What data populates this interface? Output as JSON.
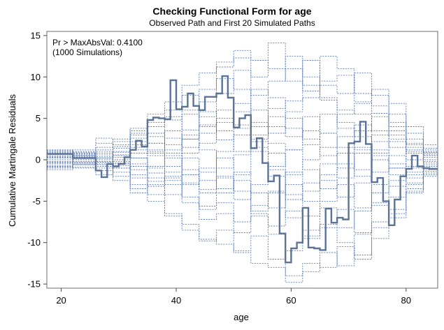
{
  "chart_data": {
    "type": "line",
    "title": "Checking Functional Form for age",
    "subtitle": "Observed Path and First 20 Simulated Paths",
    "xlabel": "age",
    "ylabel": "Cumulative Martingale Residuals",
    "annotation_line1": "Pr > MaxAbsVal: 0.4100",
    "annotation_line2": "(1000 Simulations)",
    "xlim": [
      17.5,
      85.5
    ],
    "ylim": [
      -15.5,
      15.5
    ],
    "x_ticks": [
      20,
      40,
      60,
      80
    ],
    "y_ticks": [
      -15,
      -10,
      -5,
      0,
      5,
      10,
      15
    ],
    "grid": false,
    "step": true,
    "colors": {
      "observed": "#5b7396",
      "simulated": "#4c6fae"
    },
    "observed": {
      "x": [
        17.5,
        22,
        23,
        26,
        27,
        28,
        29,
        30,
        31,
        32,
        33,
        34,
        35,
        36,
        37,
        38,
        39,
        40,
        41,
        42,
        43,
        44,
        45,
        46,
        47,
        48,
        49,
        50,
        51,
        52,
        53,
        54,
        55,
        56,
        57,
        58,
        59,
        60,
        61,
        62,
        63,
        64,
        65,
        66,
        67,
        68,
        69,
        70,
        71,
        72,
        73,
        74,
        75,
        76,
        77,
        78,
        79,
        80,
        81,
        82,
        83,
        84,
        85,
        85.5
      ],
      "y": [
        0.7,
        0.2,
        0.2,
        -1.3,
        -2.1,
        -0.5,
        -0.8,
        -0.5,
        0.3,
        1.2,
        2.3,
        1.6,
        4.8,
        5.1,
        5.0,
        4.9,
        9.6,
        6.1,
        6.4,
        8.0,
        6.5,
        6.0,
        7.6,
        7.6,
        8.0,
        10.1,
        7.5,
        3.9,
        5.0,
        5.4,
        1.4,
        2.6,
        -0.4,
        -2.6,
        -1.9,
        -8.9,
        -12.4,
        -10.7,
        -10.0,
        -5.8,
        -10.6,
        -10.7,
        -10.9,
        -5.9,
        -7.6,
        -7.0,
        -7.2,
        2.0,
        2.2,
        4.6,
        1.9,
        -2.7,
        -2.2,
        -5.0,
        -7.9,
        -4.8,
        -2.0,
        -1.1,
        0.5,
        -0.8,
        -1.0,
        -1.1,
        -1.1,
        -1.1
      ]
    },
    "simulated": [
      {
        "x": [
          17.5,
          22,
          26,
          29,
          32,
          35,
          38,
          41,
          44,
          47,
          50,
          53,
          56,
          59,
          62,
          65,
          68,
          71,
          74,
          77,
          80,
          83,
          85.5
        ],
        "y": [
          1.2,
          0.5,
          -0.3,
          1.8,
          3.5,
          5.5,
          7.0,
          6.0,
          8.5,
          11.2,
          12.3,
          10.0,
          14.1,
          11.0,
          9.0,
          7.5,
          6.0,
          5.5,
          3.5,
          2.5,
          1.0,
          0.8,
          0.8
        ]
      },
      {
        "x": [
          17.5,
          22,
          26,
          29,
          32,
          35,
          38,
          41,
          44,
          47,
          50,
          53,
          56,
          59,
          62,
          65,
          68,
          71,
          74,
          77,
          80,
          83,
          85.5
        ],
        "y": [
          -1.2,
          -0.6,
          -1.0,
          -2.5,
          -4.0,
          -3.2,
          -6.8,
          -8.5,
          -9.6,
          -10.2,
          -11.2,
          -12.5,
          -13.0,
          -14.8,
          -13.5,
          -11.2,
          -12.8,
          -9.0,
          -8.2,
          -4.5,
          -3.0,
          -1.8,
          -1.8
        ]
      },
      {
        "x": [
          17.5,
          22,
          26,
          29,
          32,
          35,
          38,
          41,
          44,
          47,
          50,
          53,
          56,
          59,
          62,
          65,
          68,
          71,
          74,
          77,
          80,
          83,
          85.5
        ],
        "y": [
          0.9,
          1.2,
          2.0,
          0.5,
          3.0,
          4.5,
          6.0,
          9.0,
          10.5,
          11.8,
          13.2,
          12.0,
          11.0,
          9.5,
          8.3,
          12.5,
          11.0,
          7.0,
          5.6,
          4.0,
          1.5,
          0.5,
          0.5
        ]
      },
      {
        "x": [
          17.5,
          22,
          26,
          29,
          32,
          35,
          38,
          41,
          44,
          47,
          50,
          53,
          56,
          59,
          62,
          65,
          68,
          71,
          74,
          77,
          80,
          83,
          85.5
        ],
        "y": [
          -0.9,
          -0.5,
          -1.8,
          -0.5,
          -3.0,
          -5.0,
          -6.5,
          -7.8,
          -9.8,
          -8.5,
          -11.0,
          -9.2,
          -12.0,
          -14.0,
          -12.5,
          -13.0,
          -10.5,
          -12.0,
          -7.5,
          -6.0,
          -3.5,
          -1.2,
          -1.2
        ]
      },
      {
        "x": [
          17.5,
          22,
          26,
          29,
          32,
          35,
          38,
          41,
          44,
          47,
          50,
          53,
          56,
          59,
          62,
          65,
          68,
          71,
          74,
          77,
          80,
          83,
          85.5
        ],
        "y": [
          0.4,
          0.8,
          -0.3,
          0.9,
          2.2,
          1.0,
          3.5,
          2.5,
          4.2,
          6.0,
          3.8,
          8.5,
          6.2,
          7.1,
          12.0,
          9.5,
          10.2,
          8.0,
          6.5,
          3.5,
          2.0,
          1.0,
          1.0
        ]
      },
      {
        "x": [
          17.5,
          22,
          26,
          29,
          32,
          35,
          38,
          41,
          44,
          47,
          50,
          53,
          56,
          59,
          62,
          65,
          68,
          71,
          74,
          77,
          80,
          83,
          85.5
        ],
        "y": [
          -0.4,
          -0.2,
          0.6,
          -1.0,
          -1.8,
          -3.0,
          -2.2,
          -4.5,
          -6.0,
          -5.2,
          -7.5,
          -6.8,
          -9.0,
          -11.0,
          -9.2,
          -8.2,
          -10.0,
          -11.5,
          -9.5,
          -6.5,
          -3.8,
          -1.6,
          -1.6
        ]
      },
      {
        "x": [
          17.5,
          22,
          26,
          29,
          32,
          35,
          38,
          41,
          44,
          47,
          50,
          53,
          56,
          59,
          62,
          65,
          68,
          71,
          74,
          77,
          80,
          83,
          85.5
        ],
        "y": [
          0.0,
          0.5,
          1.2,
          2.5,
          1.5,
          4.0,
          5.2,
          3.6,
          7.0,
          9.8,
          8.5,
          6.0,
          3.2,
          5.8,
          7.5,
          9.0,
          8.0,
          10.5,
          7.8,
          4.5,
          2.5,
          0.9,
          0.9
        ]
      },
      {
        "x": [
          17.5,
          22,
          26,
          29,
          32,
          35,
          38,
          41,
          44,
          47,
          50,
          53,
          56,
          59,
          62,
          65,
          68,
          71,
          74,
          77,
          80,
          83,
          85.5
        ],
        "y": [
          0.7,
          0.3,
          -0.8,
          -2.0,
          -0.8,
          -2.6,
          -4.2,
          -3.0,
          -5.6,
          -4.0,
          -2.5,
          -6.5,
          -8.0,
          -6.2,
          -9.5,
          -7.8,
          -6.0,
          -8.8,
          -5.2,
          -7.0,
          -4.0,
          -2.0,
          -2.0
        ]
      },
      {
        "x": [
          17.5,
          22,
          26,
          29,
          32,
          35,
          38,
          41,
          44,
          47,
          50,
          53,
          56,
          59,
          62,
          65,
          68,
          71,
          74,
          77,
          80,
          83,
          85.5
        ],
        "y": [
          -0.7,
          -0.3,
          0.2,
          1.0,
          3.8,
          2.8,
          1.2,
          5.5,
          4.0,
          2.4,
          6.8,
          4.5,
          2.0,
          1.2,
          3.5,
          0.5,
          2.8,
          4.2,
          2.2,
          5.5,
          3.2,
          1.4,
          1.4
        ]
      },
      {
        "x": [
          17.5,
          22,
          26,
          29,
          32,
          35,
          38,
          41,
          44,
          47,
          50,
          53,
          56,
          59,
          62,
          65,
          68,
          71,
          74,
          77,
          80,
          83,
          85.5
        ],
        "y": [
          0.2,
          -0.6,
          -1.3,
          -0.4,
          -1.2,
          0.8,
          -1.5,
          -2.8,
          -1.0,
          -3.5,
          -1.5,
          -4.0,
          -5.8,
          -3.0,
          -5.0,
          -2.5,
          -4.5,
          -2.8,
          -5.5,
          -3.2,
          -1.8,
          -0.6,
          -0.6
        ]
      },
      {
        "x": [
          17.5,
          22,
          26,
          29,
          32,
          35,
          38,
          41,
          44,
          47,
          50,
          53,
          56,
          59,
          62,
          65,
          68,
          71,
          74,
          77,
          80,
          83,
          85.5
        ],
        "y": [
          -0.2,
          0.2,
          0.8,
          0.3,
          0.8,
          2.0,
          2.6,
          0.8,
          2.0,
          4.5,
          5.8,
          3.0,
          5.2,
          3.8,
          1.8,
          3.2,
          5.5,
          6.8,
          8.5,
          6.8,
          4.0,
          1.8,
          1.8
        ]
      },
      {
        "x": [
          17.5,
          22,
          26,
          29,
          32,
          35,
          38,
          41,
          44,
          47,
          50,
          53,
          56,
          59,
          62,
          65,
          68,
          71,
          74,
          77,
          80,
          83,
          85.5
        ],
        "y": [
          1.0,
          0.6,
          0.0,
          -1.0,
          0.2,
          -1.6,
          -3.0,
          -1.8,
          -3.6,
          -2.0,
          -4.8,
          -3.0,
          -1.2,
          -4.2,
          -6.8,
          -5.0,
          -3.0,
          -5.8,
          -4.0,
          -2.5,
          -1.0,
          -0.2,
          -0.2
        ]
      },
      {
        "x": [
          17.5,
          22,
          26,
          29,
          32,
          35,
          38,
          41,
          44,
          47,
          50,
          53,
          56,
          59,
          62,
          65,
          68,
          71,
          74,
          77,
          80,
          83,
          85.5
        ],
        "y": [
          -1.0,
          -0.4,
          1.5,
          0.0,
          1.8,
          3.2,
          0.5,
          2.5,
          5.8,
          3.5,
          1.0,
          4.0,
          7.5,
          5.0,
          2.5,
          5.5,
          3.8,
          1.2,
          3.0,
          1.5,
          0.0,
          1.2,
          1.2
        ]
      },
      {
        "x": [
          17.5,
          22,
          26,
          29,
          32,
          35,
          38,
          41,
          44,
          47,
          50,
          53,
          56,
          59,
          62,
          65,
          68,
          71,
          74,
          77,
          80,
          83,
          85.5
        ],
        "y": [
          0.5,
          0.0,
          -0.5,
          1.6,
          -0.5,
          -2.2,
          0.8,
          -1.2,
          -2.5,
          0.2,
          -1.8,
          1.0,
          -2.0,
          -4.8,
          -2.8,
          -0.5,
          -2.2,
          0.8,
          -1.5,
          0.5,
          -0.8,
          0.3,
          0.3
        ]
      },
      {
        "x": [
          17.5,
          22,
          26,
          29,
          32,
          35,
          38,
          41,
          44,
          47,
          50,
          53,
          56,
          59,
          62,
          65,
          68,
          71,
          74,
          77,
          80,
          83,
          85.5
        ],
        "y": [
          -0.5,
          0.9,
          0.4,
          -0.7,
          2.6,
          1.2,
          4.8,
          7.8,
          5.2,
          8.0,
          10.8,
          7.8,
          9.5,
          12.5,
          10.0,
          7.2,
          4.5,
          2.8,
          0.5,
          -1.0,
          -2.2,
          -1.0,
          -1.0
        ]
      },
      {
        "x": [
          17.5,
          22,
          26,
          29,
          32,
          35,
          38,
          41,
          44,
          47,
          50,
          53,
          56,
          59,
          62,
          65,
          68,
          71,
          74,
          77,
          80,
          83,
          85.5
        ],
        "y": [
          0.3,
          -0.9,
          -0.2,
          -1.5,
          -3.5,
          -1.0,
          -2.5,
          -5.2,
          -7.2,
          -6.5,
          -8.8,
          -5.5,
          -4.0,
          -7.0,
          -8.5,
          -5.8,
          -8.2,
          -6.2,
          -3.0,
          -1.0,
          1.2,
          0.0,
          0.0
        ]
      },
      {
        "x": [
          17.5,
          22,
          26,
          29,
          32,
          35,
          38,
          41,
          44,
          47,
          50,
          53,
          56,
          59,
          62,
          65,
          68,
          71,
          74,
          77,
          80,
          83,
          85.5
        ],
        "y": [
          -0.3,
          0.4,
          1.0,
          2.2,
          0.2,
          -0.8,
          1.8,
          3.0,
          1.2,
          -1.0,
          0.6,
          2.2,
          0.8,
          -1.8,
          0.0,
          1.5,
          -0.5,
          -2.0,
          0.8,
          2.2,
          0.8,
          -0.4,
          -0.4
        ]
      },
      {
        "x": [
          17.5,
          22,
          26,
          29,
          32,
          35,
          38,
          41,
          44,
          47,
          50,
          53,
          56,
          59,
          62,
          65,
          68,
          71,
          74,
          77,
          80,
          83,
          85.5
        ],
        "y": [
          0.8,
          1.0,
          0.2,
          -0.2,
          -2.2,
          -4.2,
          -2.0,
          0.2,
          -1.5,
          1.0,
          3.0,
          1.5,
          -0.8,
          1.2,
          -1.2,
          -3.5,
          -1.0,
          1.5,
          0.0,
          -1.8,
          -2.8,
          -1.4,
          -1.4
        ]
      },
      {
        "x": [
          17.5,
          22,
          26,
          29,
          32,
          35,
          38,
          41,
          44,
          47,
          50,
          53,
          56,
          59,
          62,
          65,
          68,
          71,
          74,
          77,
          80,
          83,
          85.5
        ],
        "y": [
          -0.8,
          -1.0,
          -0.6,
          0.6,
          1.2,
          0.5,
          -0.8,
          1.5,
          3.2,
          5.0,
          4.2,
          2.5,
          4.0,
          2.8,
          5.2,
          3.2,
          1.5,
          3.5,
          5.2,
          3.0,
          1.8,
          0.6,
          0.6
        ]
      },
      {
        "x": [
          17.5,
          22,
          26,
          29,
          32,
          35,
          38,
          41,
          44,
          47,
          50,
          53,
          56,
          59,
          62,
          65,
          68,
          71,
          74,
          77,
          80,
          83,
          85.5
        ],
        "y": [
          1.1,
          0.7,
          2.6,
          1.4,
          3.2,
          2.0,
          0.2,
          -1.8,
          -4.0,
          -2.2,
          -3.8,
          -6.2,
          -3.8,
          -1.5,
          -3.8,
          -1.8,
          0.8,
          -1.2,
          1.2,
          -0.5,
          -1.5,
          -0.8,
          -0.8
        ]
      }
    ]
  }
}
